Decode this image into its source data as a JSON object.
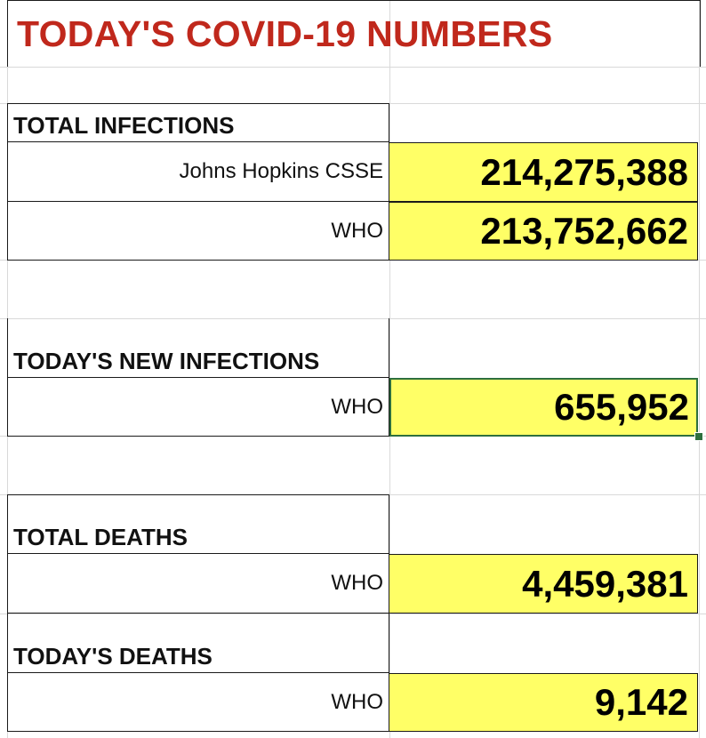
{
  "title": "TODAY'S COVID-19 NUMBERS",
  "sections": {
    "total_infections": {
      "heading": "TOTAL INFECTIONS",
      "rows": [
        {
          "source": "Johns Hopkins CSSE",
          "value": "214,275,388"
        },
        {
          "source": "WHO",
          "value": "213,752,662"
        }
      ]
    },
    "new_infections": {
      "heading": "TODAY'S NEW INFECTIONS",
      "rows": [
        {
          "source": "WHO",
          "value": "655,952"
        }
      ]
    },
    "total_deaths": {
      "heading": "TOTAL DEATHS",
      "rows": [
        {
          "source": "WHO",
          "value": "4,459,381"
        }
      ]
    },
    "todays_deaths": {
      "heading": "TODAY'S DEATHS",
      "rows": [
        {
          "source": "WHO",
          "value": "9,142"
        }
      ]
    }
  },
  "colors": {
    "title": "#c0281c",
    "value_fill": "#ffff66",
    "selection": "#2e6f3e"
  }
}
